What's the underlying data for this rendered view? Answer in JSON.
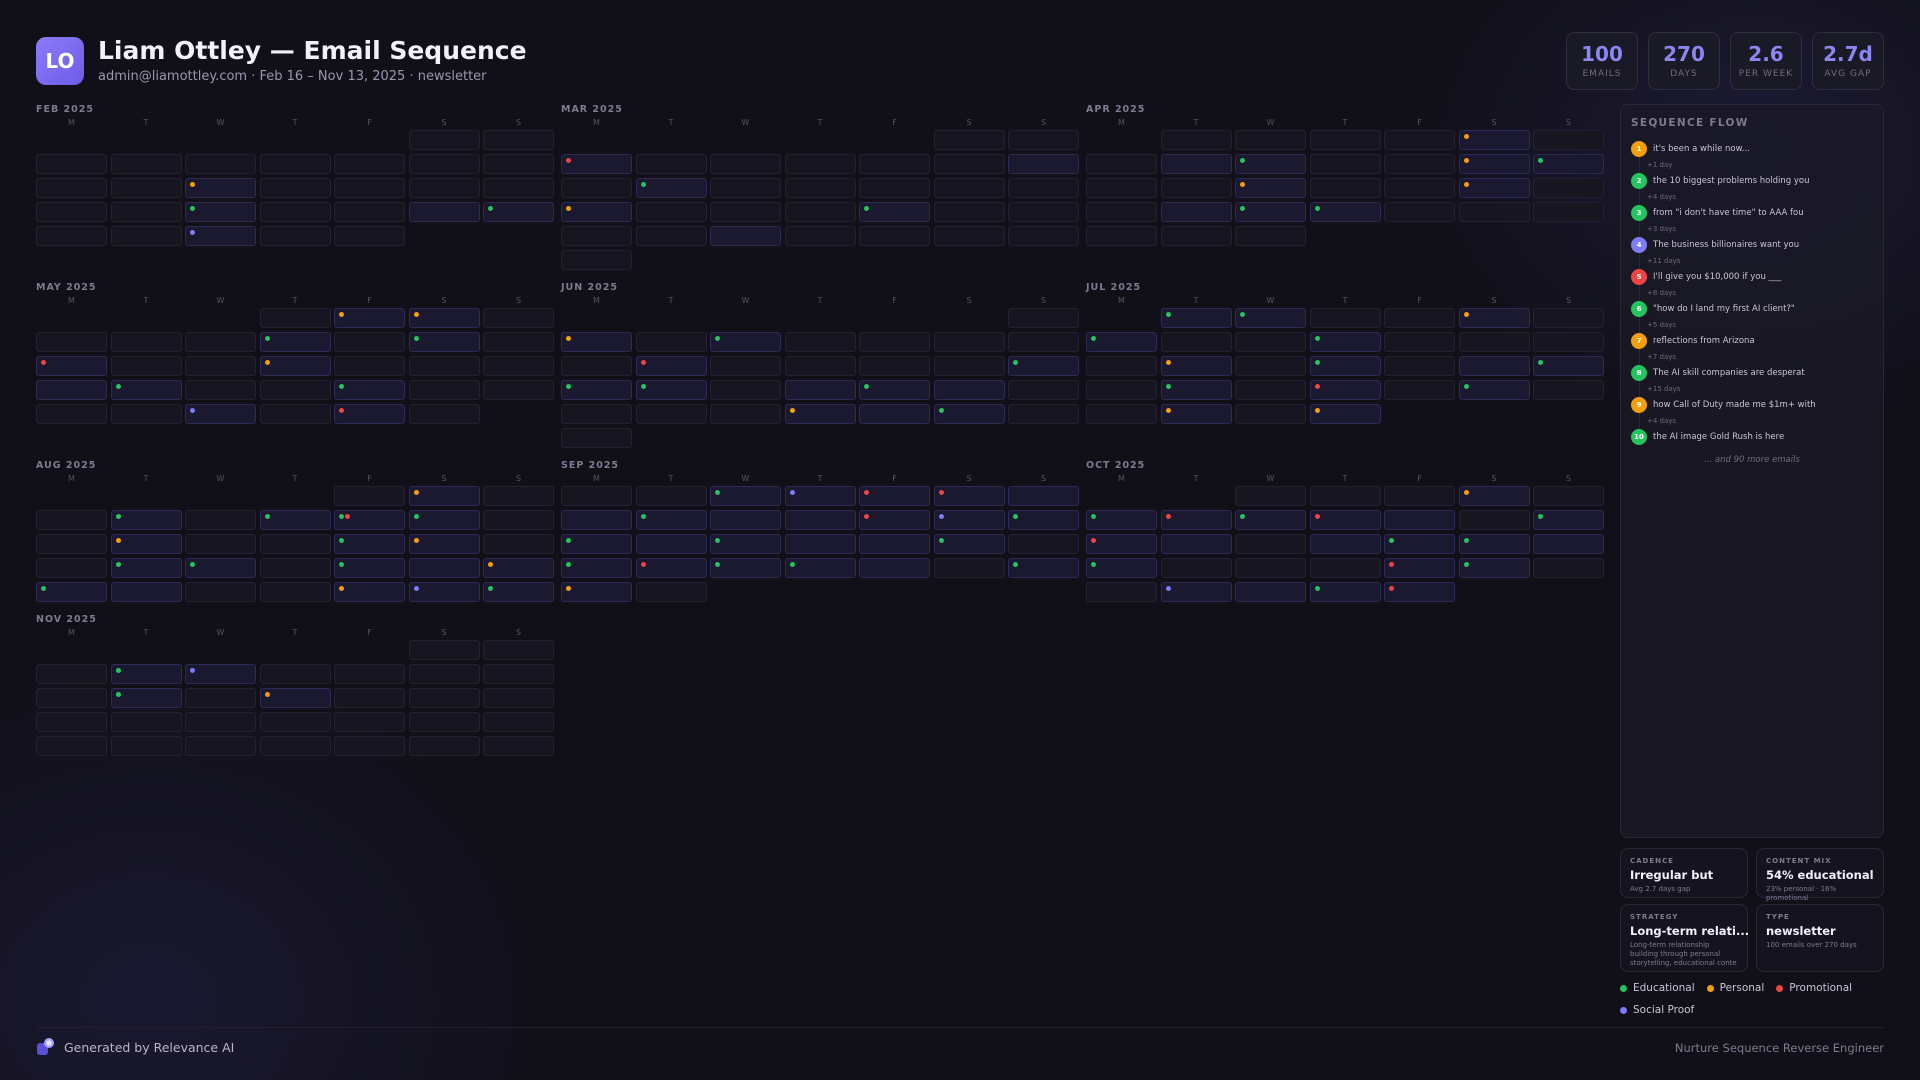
{
  "header": {
    "initials": "LO",
    "title": "Liam Ottley — Email Sequence",
    "subtitle": "admin@liamottley.com · Feb 16 – Nov 13, 2025 · newsletter"
  },
  "stats": [
    {
      "value": "100",
      "label": "EMAILS"
    },
    {
      "value": "270",
      "label": "DAYS"
    },
    {
      "value": "2.6",
      "label": "PER WEEK"
    },
    {
      "value": "2.7d",
      "label": "AVG GAP"
    }
  ],
  "colors": {
    "E": "#22c55e",
    "P": "#f59e0b",
    "R": "#ef4444",
    "S": "#7c7cf5"
  },
  "weekdays": [
    "M",
    "T",
    "W",
    "T",
    "F",
    "S",
    "S"
  ],
  "months": [
    {
      "title": "FEB 2025",
      "offset": 5,
      "days": 28,
      "active": [
        16,
        26,
        30,
        34,
        36
      ],
      "dots": {
        "16": "P",
        "23": "E",
        "27": "E",
        "30": "S"
      }
    },
    {
      "title": "MAR 2025",
      "offset": 5,
      "days": 31,
      "active": [
        13,
        15,
        21,
        25,
        30
      ],
      "dots": {
        "7": "R",
        "15": "E",
        "21": "P",
        "25": "E"
      }
    },
    {
      "title": "APR 2025",
      "offset": 1,
      "days": 30,
      "active": [
        5,
        8,
        9,
        12,
        16,
        19,
        22,
        23
      ],
      "dots": {
        "5": "P",
        "9": "E",
        "12": "P",
        "13": "E",
        "16": "P",
        "19": "P",
        "23": "E",
        "24": "E"
      }
    },
    {
      "title": "MAY 2025",
      "offset": 3,
      "days": 31,
      "active": [
        4,
        5,
        10,
        12,
        17,
        21,
        22,
        25,
        30,
        32
      ],
      "dots": {
        "4": "P",
        "5": "P",
        "10": "E",
        "12": "E",
        "14": "R",
        "17": "P",
        "22": "E",
        "25": "E",
        "30": "S",
        "32": "R"
      }
    },
    {
      "title": "JUN 2025",
      "offset": 6,
      "days": 30,
      "active": [
        7,
        9,
        15,
        21,
        22,
        24,
        26,
        31,
        32
      ],
      "dots": {
        "7": "P",
        "9": "E",
        "15": "R",
        "20": "E",
        "21": "E",
        "22": "E",
        "25": "E",
        "31": "P",
        "33": "E"
      }
    },
    {
      "title": "JUL 2025",
      "offset": 1,
      "days": 31,
      "active": [
        1,
        2,
        5,
        7,
        10,
        17,
        19,
        20,
        22,
        26,
        29,
        31
      ],
      "dots": {
        "1": "E",
        "2": "E",
        "5": "P",
        "7": "E",
        "10": "E",
        "15": "P",
        "17": "E",
        "20": "E",
        "22": "E",
        "24": "R",
        "26": "E",
        "29": "P",
        "31": "P"
      }
    },
    {
      "title": "AUG 2025",
      "offset": 4,
      "days": 31,
      "active": [
        5,
        8,
        11,
        12,
        15,
        19,
        22,
        25,
        26,
        29,
        32,
        33
      ],
      "dots": {
        "5": "P",
        "8": "E",
        "10": "E",
        "11": "R",
        "12": "E",
        "15": "P",
        "18": "E",
        "19": "P",
        "22": "E",
        "23": "E",
        "25": "E",
        "27": "P",
        "28": "E",
        "32": "P",
        "33": "S",
        "34": "E"
      }
    },
    {
      "title": "SEP 2025",
      "offset": 0,
      "days": 30,
      "active": [
        2,
        3,
        5,
        6,
        7,
        8,
        9,
        10,
        11,
        12,
        13,
        14,
        15,
        16,
        17,
        18,
        21,
        22,
        23,
        24,
        25,
        28
      ],
      "dots": {
        "2": "E",
        "3": "S",
        "4": "R",
        "5": "R",
        "8": "E",
        "11": "R",
        "12": "S",
        "13": "E",
        "14": "E",
        "16": "E",
        "19": "E",
        "21": "E",
        "22": "R",
        "23": "E",
        "24": "E",
        "27": "E",
        "28": "P"
      }
    },
    {
      "title": "OCT 2025",
      "offset": 2,
      "days": 31,
      "active": [
        5,
        7,
        8,
        9,
        10,
        11,
        13,
        15,
        17,
        19,
        20,
        25,
        26,
        29,
        30,
        32
      ],
      "dots": {
        "5": "P",
        "7": "E",
        "8": "R",
        "9": "E",
        "10": "R",
        "13": "E",
        "14": "R",
        "18": "E",
        "19": "E",
        "21": "E",
        "25": "R",
        "26": "E",
        "29": "S",
        "31": "E",
        "32": "R"
      }
    },
    {
      "title": "NOV 2025",
      "offset": 5,
      "days": 30,
      "active": [
        8,
        9,
        15,
        17
      ],
      "dots": {
        "8": "E",
        "9": "S",
        "15": "E",
        "17": "P"
      }
    }
  ],
  "flow": {
    "title": "SEQUENCE FLOW",
    "items": [
      {
        "num": "1",
        "type": "P",
        "subject": "it's been a while now..."
      },
      {
        "gap": "+1 day"
      },
      {
        "num": "2",
        "type": "E",
        "subject": "the 10 biggest problems holding you"
      },
      {
        "gap": "+4 days"
      },
      {
        "num": "3",
        "type": "E",
        "subject": "from \"i don't have time\" to AAA fou"
      },
      {
        "gap": "+3 days"
      },
      {
        "num": "4",
        "type": "S",
        "subject": "The business billionaires want you"
      },
      {
        "gap": "+11 days"
      },
      {
        "num": "5",
        "type": "R",
        "subject": "I'll give you $10,000 if you ___"
      },
      {
        "gap": "+8 days"
      },
      {
        "num": "6",
        "type": "E",
        "subject": "\"how do I land my first AI client?\""
      },
      {
        "gap": "+5 days"
      },
      {
        "num": "7",
        "type": "P",
        "subject": "reflections from Arizona"
      },
      {
        "gap": "+7 days"
      },
      {
        "num": "8",
        "type": "E",
        "subject": "The AI skill companies are desperat"
      },
      {
        "gap": "+15 days"
      },
      {
        "num": "9",
        "type": "P",
        "subject": "how Call of Duty made me $1m+ with"
      },
      {
        "gap": "+4 days"
      },
      {
        "num": "10",
        "type": "E",
        "subject": "the AI image Gold Rush is here"
      }
    ],
    "more": "... and 90 more emails"
  },
  "cards": {
    "cadence": {
      "label": "CADENCE",
      "value": "Irregular but",
      "sub": "Avg 2.7 days gap"
    },
    "content_mix": {
      "label": "CONTENT MIX",
      "value": "54% educational",
      "sub": "23% personal · 16% promotional"
    },
    "strategy": {
      "label": "STRATEGY",
      "value": "Long-term relati...",
      "sub": "Long-term relationship building through personal storytelling, educational conte"
    },
    "type": {
      "label": "TYPE",
      "value": "newsletter",
      "sub": "100 emails over 270 days"
    }
  },
  "legend": [
    {
      "label": "Educational",
      "type": "E"
    },
    {
      "label": "Personal",
      "type": "P"
    },
    {
      "label": "Promotional",
      "type": "R"
    },
    {
      "label": "Social Proof",
      "type": "S"
    }
  ],
  "footer": {
    "left": "Generated by Relevance AI",
    "right": "Nurture Sequence Reverse Engineer"
  }
}
